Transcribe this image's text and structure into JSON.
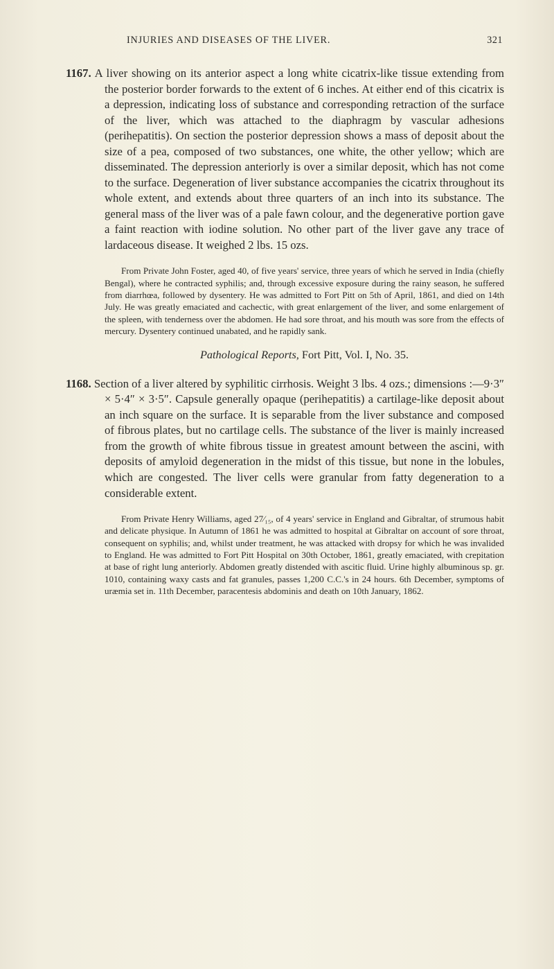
{
  "header": {
    "title": "INJURIES AND DISEASES OF THE LIVER.",
    "page_number": "321"
  },
  "entries": [
    {
      "num": "1167.",
      "body": "A liver showing on its anterior aspect a long white cicatrix-like tissue extending from the posterior border forwards to the extent of 6 inches. At either end of this cicatrix is a depression, indicating loss of substance and corresponding retraction of the surface of the liver, which was attached to the diaphragm by vascular adhesions (perihepatitis). On section the posterior depression shows a mass of deposit about the size of a pea, composed of two substances, one white, the other yellow; which are disseminated. The depression anteriorly is over a similar deposit, which has not come to the surface. Degeneration of liver substance accompanies the cicatrix throughout its whole extent, and extends about three quarters of an inch into its substance. The general mass of the liver was of a pale fawn colour, and the degenerative portion gave a faint reaction with iodine solution. No other part of the liver gave any trace of lardaceous disease. It weighed 2 lbs. 15 ozs.",
      "note": "From Private John Foster, aged 40, of five years' service, three years of which he served in India (chiefly Bengal), where he contracted syphilis; and, through excessive exposure during the rainy season, he suffered from diarrhœa, followed by dysentery. He was admitted to Fort Pitt on 5th of April, 1861, and died on 14th July. He was greatly emaciated and cachectic, with great enlargement of the liver, and some enlargement of the spleen, with tenderness over the abdomen. He had sore throat, and his mouth was sore from the effects of mercury. Dysentery continued unabated, and he rapidly sank.",
      "ref_ital": "Pathological Reports,",
      "ref_rest": " Fort Pitt, Vol. I, No. 35."
    },
    {
      "num": "1168.",
      "body": "Section of a liver altered by syphilitic cirrhosis. Weight 3 lbs. 4 ozs.; dimensions :—9·3″ × 5·4″ × 3·5″. Capsule generally opaque (perihepatitis) a cartilage-like deposit about an inch square on the surface. It is separable from the liver substance and composed of fibrous plates, but no cartilage cells. The substance of the liver is mainly increased from the growth of white fibrous tissue in greatest amount between the ascini, with deposits of amyloid degeneration in the midst of this tissue, but none in the lobules, which are congested. The liver cells were granular from fatty degeneration to a considerable extent.",
      "note": "From Private Henry Williams, aged 27⁄₁₅, of 4 years' service in England and Gibraltar, of strumous habit and delicate physique. In Autumn of 1861 he was admitted to hospital at Gibraltar on account of sore throat, consequent on syphilis; and, whilst under treatment, he was attacked with dropsy for which he was invalided to England. He was admitted to Fort Pitt Hospital on 30th October, 1861, greatly emaciated, with crepitation at base of right lung anteriorly. Abdomen greatly distended with ascitic fluid. Urine highly albuminous sp. gr. 1010, containing waxy casts and fat granules, passes 1,200 C.C.'s in 24 hours. 6th December, symptoms of uræmia set in. 11th December, paracentesis abdominis and death on 10th January, 1862."
    }
  ]
}
